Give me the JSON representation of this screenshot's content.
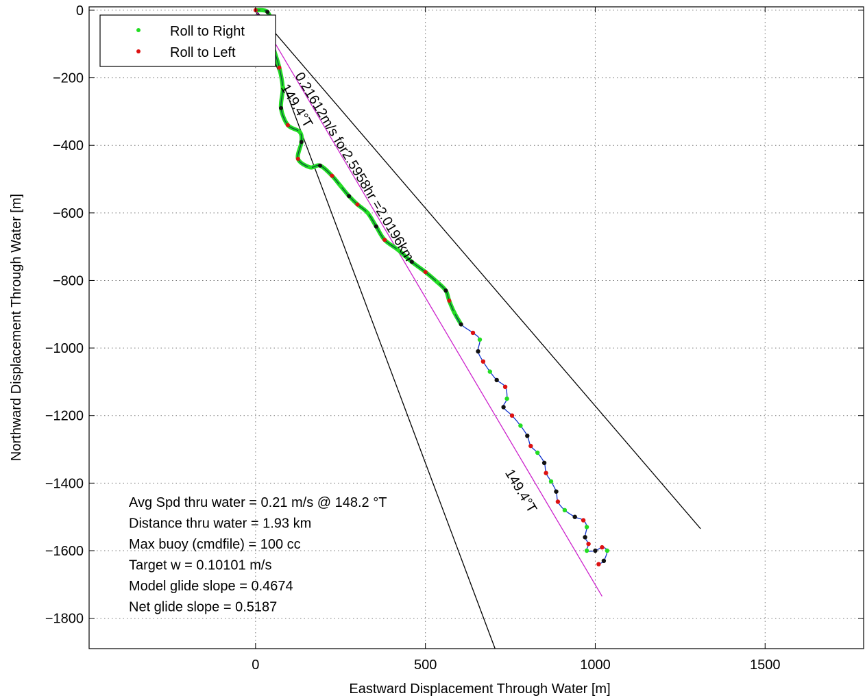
{
  "chart_data": {
    "type": "line",
    "xlabel": "Eastward Displacement Through Water [m]",
    "ylabel": "Northward Displacement Through Water [m]",
    "xlim": [
      -490,
      1790
    ],
    "ylim": [
      -1890,
      10
    ],
    "x_ticks": [
      0,
      500,
      1000,
      1500
    ],
    "y_ticks": [
      0,
      -200,
      -400,
      -600,
      -800,
      -1000,
      -1200,
      -1400,
      -1600,
      -1800
    ],
    "grid": true,
    "legend": {
      "position": "top-left",
      "entries": [
        {
          "label": "Roll to Right",
          "color": "#22dd22"
        },
        {
          "label": "Roll to Left",
          "color": "#dd1111"
        }
      ]
    },
    "series": [
      {
        "color": "#1133cc",
        "points": [
          [
            0,
            0
          ],
          [
            20,
            0
          ],
          [
            35,
            -5
          ],
          [
            45,
            -30
          ],
          [
            40,
            -70
          ],
          [
            55,
            -120
          ],
          [
            70,
            -170
          ],
          [
            80,
            -230
          ],
          [
            75,
            -290
          ],
          [
            95,
            -340
          ],
          [
            130,
            -360
          ],
          [
            135,
            -390
          ],
          [
            125,
            -440
          ],
          [
            160,
            -465
          ],
          [
            190,
            -460
          ],
          [
            225,
            -490
          ],
          [
            250,
            -520
          ],
          [
            275,
            -550
          ],
          [
            300,
            -575
          ],
          [
            330,
            -600
          ],
          [
            355,
            -640
          ],
          [
            380,
            -680
          ],
          [
            420,
            -710
          ],
          [
            460,
            -745
          ],
          [
            500,
            -775
          ],
          [
            535,
            -805
          ],
          [
            560,
            -830
          ],
          [
            570,
            -860
          ],
          [
            585,
            -895
          ],
          [
            605,
            -930
          ],
          [
            640,
            -955
          ],
          [
            660,
            -975
          ],
          [
            655,
            -1010
          ],
          [
            670,
            -1040
          ],
          [
            690,
            -1070
          ],
          [
            710,
            -1095
          ],
          [
            735,
            -1115
          ],
          [
            740,
            -1150
          ],
          [
            730,
            -1175
          ],
          [
            755,
            -1200
          ],
          [
            780,
            -1230
          ],
          [
            800,
            -1260
          ],
          [
            810,
            -1290
          ],
          [
            830,
            -1310
          ],
          [
            850,
            -1340
          ],
          [
            855,
            -1370
          ],
          [
            870,
            -1395
          ],
          [
            885,
            -1425
          ],
          [
            890,
            -1455
          ],
          [
            910,
            -1480
          ],
          [
            940,
            -1500
          ],
          [
            965,
            -1510
          ],
          [
            975,
            -1530
          ],
          [
            970,
            -1560
          ],
          [
            980,
            -1580
          ],
          [
            975,
            -1600
          ],
          [
            1000,
            -1600
          ],
          [
            1020,
            -1590
          ],
          [
            1035,
            -1600
          ],
          [
            1025,
            -1630
          ],
          [
            1010,
            -1640
          ]
        ]
      }
    ],
    "reference_lines": [
      {
        "color": "#000000",
        "from": [
          0,
          0
        ],
        "to": [
          1310,
          -1535
        ]
      },
      {
        "color": "#000000",
        "from": [
          0,
          0
        ],
        "to": [
          705,
          -1890
        ]
      },
      {
        "color": "#cc22cc",
        "from": [
          0,
          0
        ],
        "to": [
          1020,
          -1735
        ]
      }
    ],
    "line_labels": [
      {
        "text": "0.21612m/s for2.5958hr =2.0196km",
        "at": [
          280,
          -470
        ],
        "angle": 59
      },
      {
        "text": "149.4°T",
        "at": [
          110,
          -290
        ],
        "angle": 59
      },
      {
        "text": "149.4°T",
        "at": [
          770,
          -1430
        ],
        "angle": 59
      }
    ],
    "annotations": [
      "Avg Spd thru water =  0.21 m/s @ 148.2    °T",
      "Distance thru water =  1.93 km",
      "Max buoy (cmdfile) = 100 cc",
      "Target w = 0.10101 m/s",
      "Model glide slope = 0.4674",
      "Net glide slope = 0.5187"
    ]
  }
}
